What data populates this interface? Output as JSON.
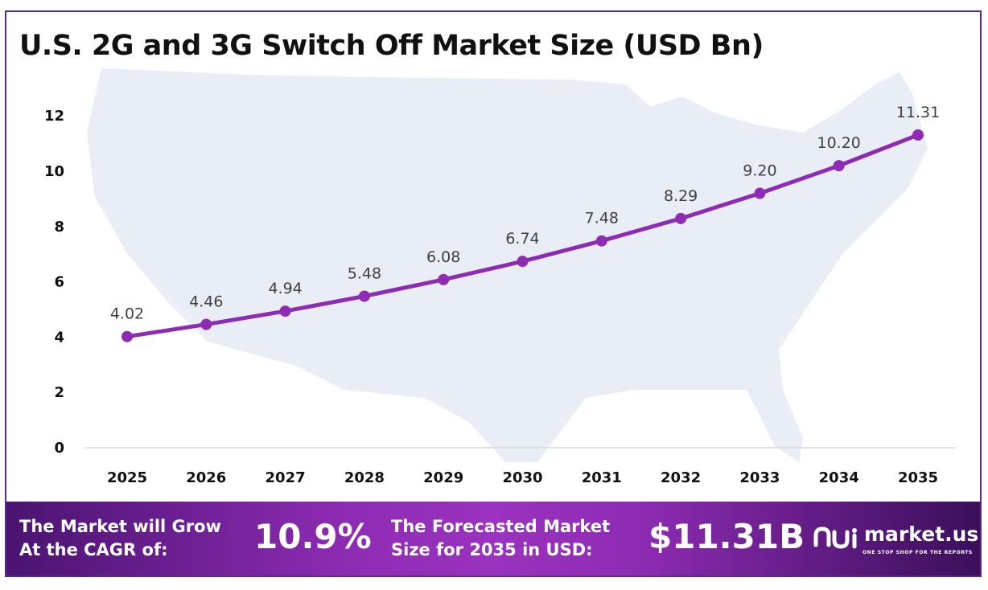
{
  "chart_data": {
    "type": "line",
    "title": "U.S. 2G and 3G Switch Off Market Size (USD Bn)",
    "categories": [
      "2025",
      "2026",
      "2027",
      "2028",
      "2029",
      "2030",
      "2031",
      "2032",
      "2033",
      "2034",
      "2035"
    ],
    "series": [
      {
        "values": [
          4.02,
          4.46,
          4.94,
          5.48,
          6.08,
          6.74,
          7.48,
          8.29,
          9.2,
          10.2,
          11.31
        ]
      }
    ],
    "data_labels": [
      "4.02",
      "4.46",
      "4.94",
      "5.48",
      "6.08",
      "6.74",
      "7.48",
      "8.29",
      "9.20",
      "10.20",
      "11.31"
    ],
    "y_ticks": [
      0,
      2,
      4,
      6,
      8,
      10,
      12
    ],
    "ylim": [
      0,
      12
    ],
    "xlabel": "",
    "ylabel": "",
    "grid": false,
    "line_color": "#8e2bb3",
    "background_image": "us-map-silhouette"
  },
  "footer": {
    "cagr_label_line1": "The Market will Grow",
    "cagr_label_line2": "At the CAGR of:",
    "cagr_value": "10.9%",
    "forecast_label_line1": "The Forecasted Market",
    "forecast_label_line2": "Size for 2035 in USD:",
    "forecast_value": "$11.31B"
  },
  "brand": {
    "name": "market.us",
    "tagline": "ONE STOP SHOP FOR THE REPORTS",
    "logo_icon": "market-us-logo-icon"
  },
  "colors": {
    "accent": "#8e2bb3",
    "footer_dark": "#4a1470",
    "border": "#5b2a86",
    "map": "#e9eef7"
  }
}
